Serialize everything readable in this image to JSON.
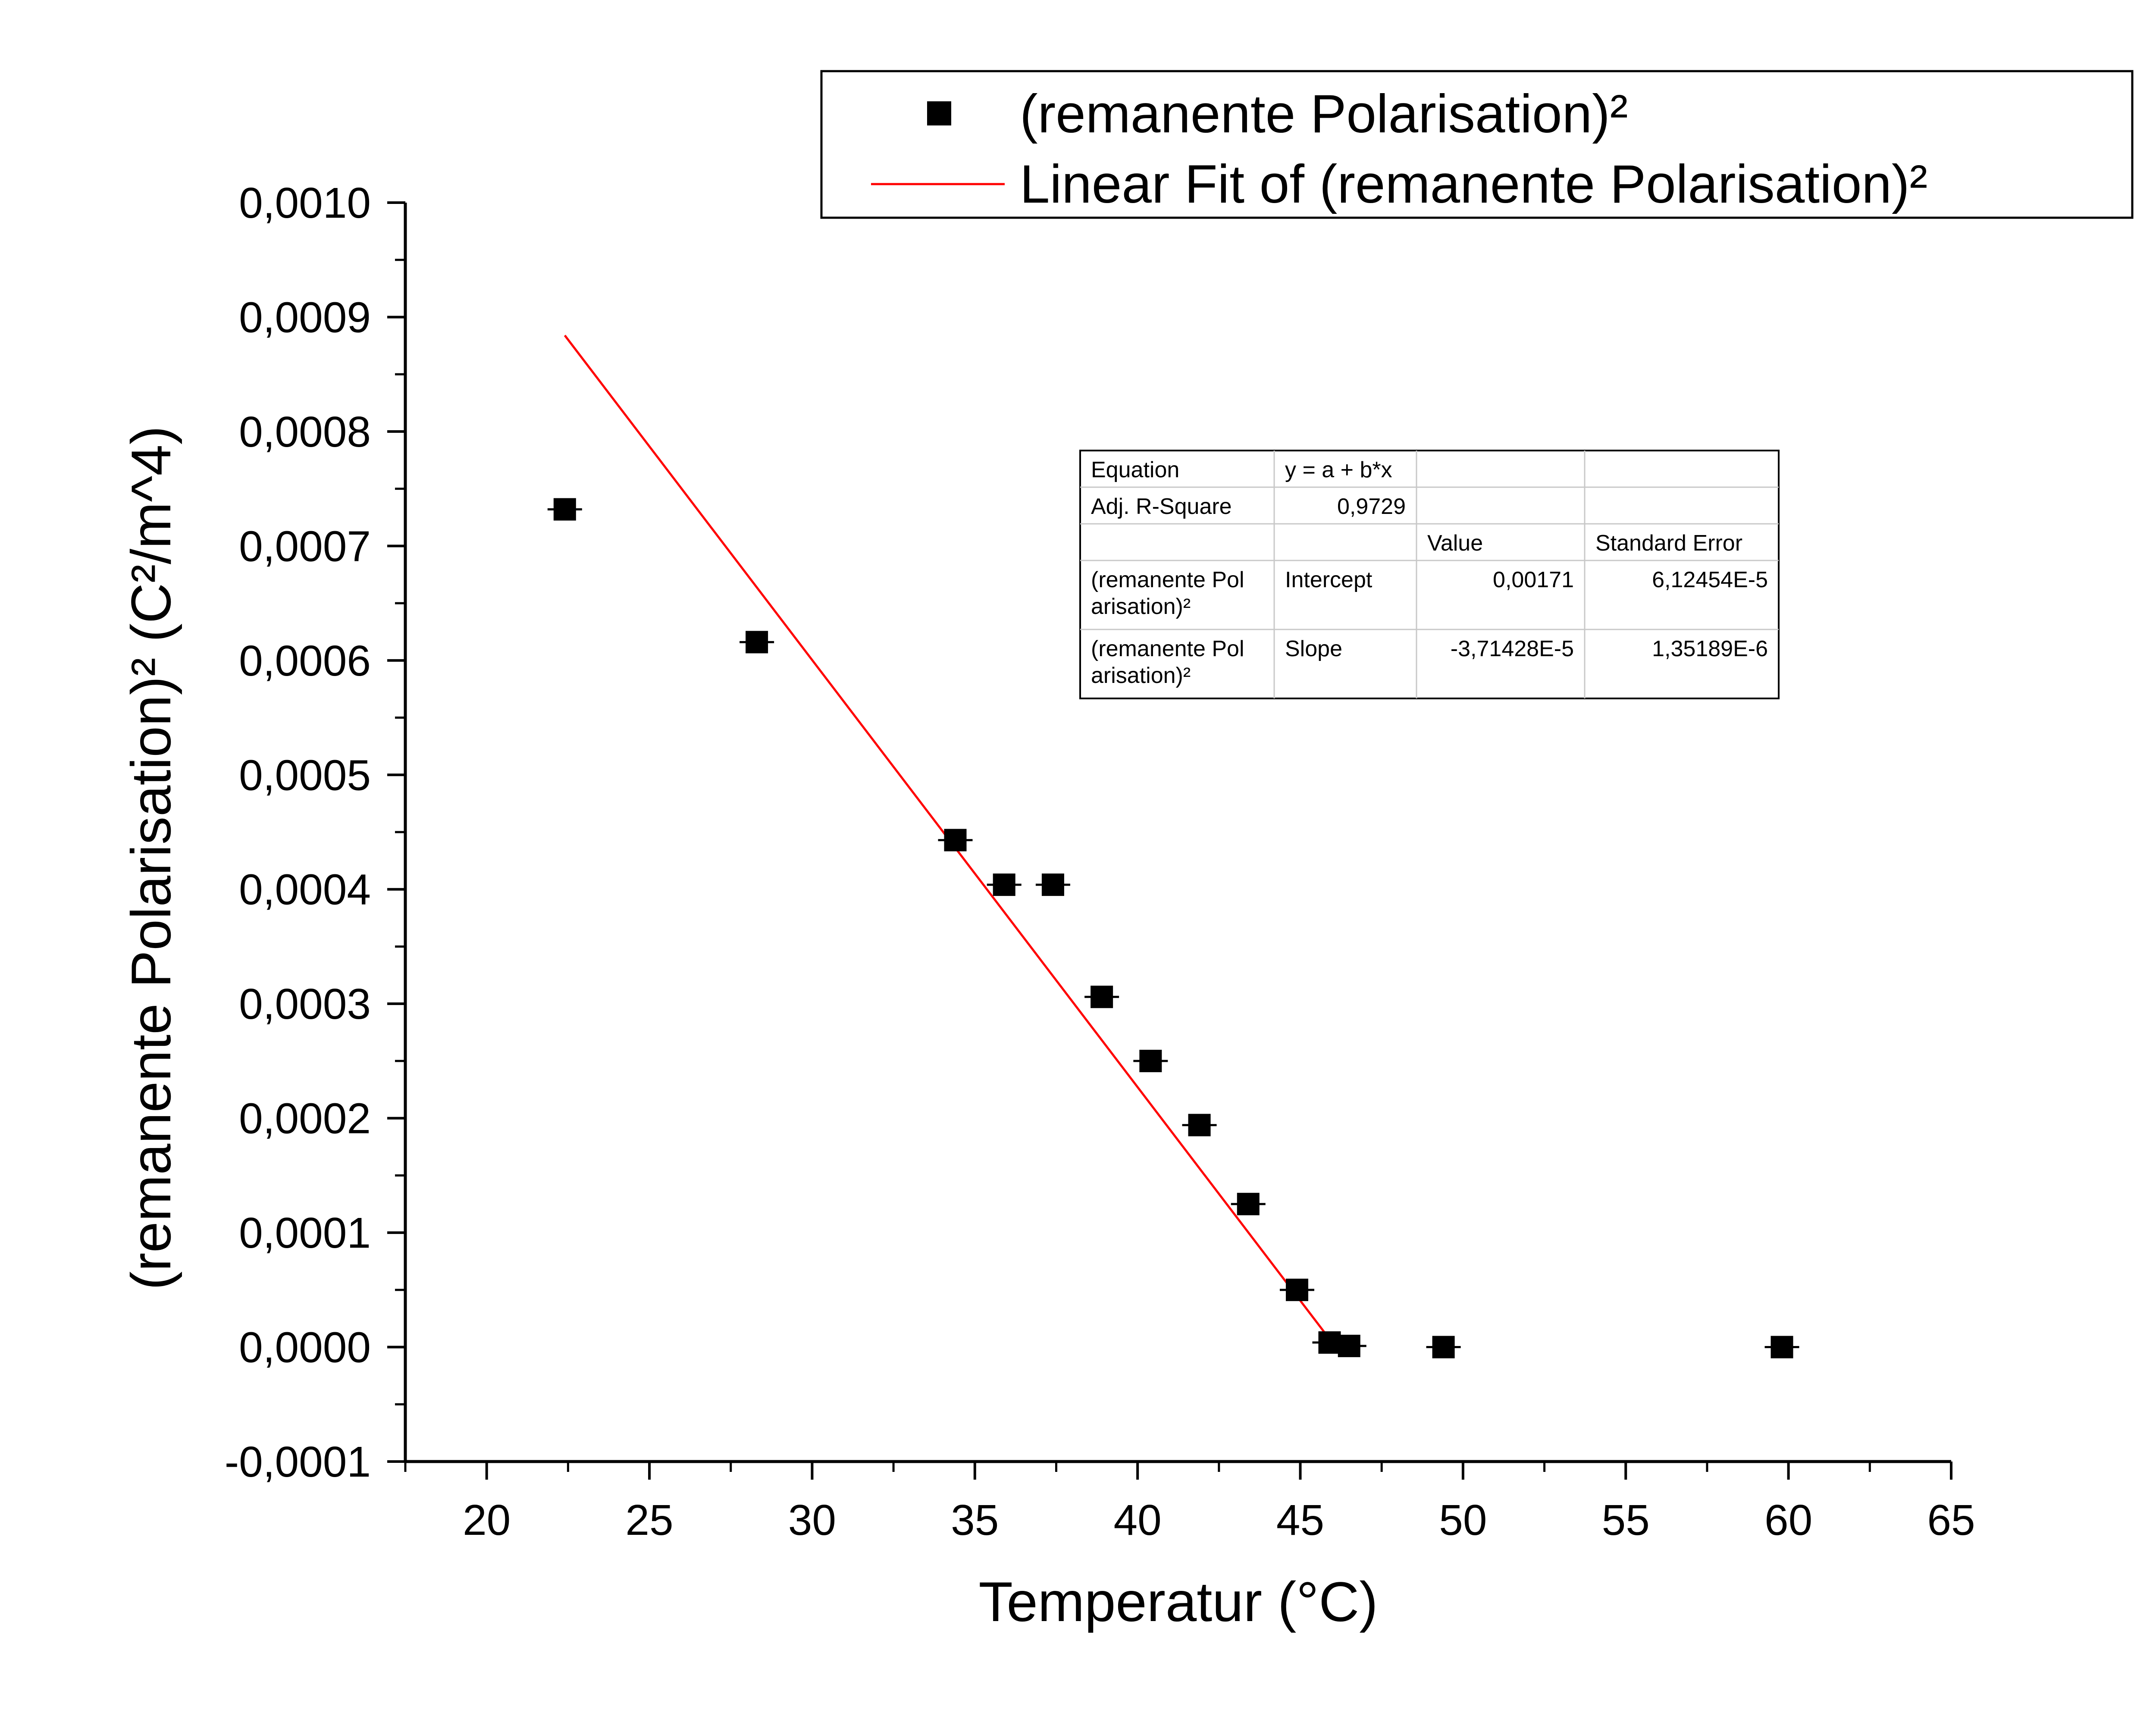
{
  "chart_data": {
    "type": "scatter",
    "xlabel": "Temperatur (°C)",
    "ylabel": "(remanente Polarisation)² (C²/m^4)",
    "xlim": [
      17.5,
      65
    ],
    "ylim": [
      -0.0001,
      0.001
    ],
    "xticks": [
      20,
      25,
      30,
      35,
      40,
      45,
      50,
      55,
      60,
      65
    ],
    "xtick_labels": [
      "20",
      "25",
      "30",
      "35",
      "40",
      "45",
      "50",
      "55",
      "60",
      "65"
    ],
    "yticks": [
      -0.0001,
      0,
      0.0001,
      0.0002,
      0.0003,
      0.0004,
      0.0005,
      0.0006,
      0.0007,
      0.0008,
      0.0009,
      0.001
    ],
    "ytick_labels": [
      "-0,0001",
      "0,0000",
      "0,0001",
      "0,0002",
      "0,0003",
      "0,0004",
      "0,0005",
      "0,0006",
      "0,0007",
      "0,0008",
      "0,0009",
      "0,0010"
    ],
    "legend_position": "top-right",
    "series": [
      {
        "name": "(remanente Polarisation)²",
        "kind": "scatter",
        "marker": "square",
        "color": "#000000",
        "x": [
          22.4,
          28.3,
          34.4,
          35.9,
          37.4,
          38.9,
          40.4,
          41.9,
          43.4,
          44.9,
          45.9,
          46.5,
          49.4,
          59.8
        ],
        "y": [
          0.000732,
          0.000616,
          0.000443,
          0.000404,
          0.000404,
          0.000306,
          0.00025,
          0.000194,
          0.000125,
          5e-05,
          4e-06,
          1e-06,
          0.0,
          0.0
        ]
      },
      {
        "name": "Linear Fit of (remanente Polarisation)²",
        "kind": "line",
        "color": "#ff0000",
        "x": [
          22.4,
          45.9
        ],
        "y": [
          0.000884,
          7e-06
        ]
      }
    ],
    "fit_table": {
      "rows": [
        [
          "Equation",
          "y = a + b*x",
          "",
          ""
        ],
        [
          "Adj. R-Square",
          "0,9729",
          "",
          ""
        ],
        [
          "",
          "",
          "Value",
          "Standard Error"
        ],
        [
          "(remanente Pol\narisation)²",
          "Intercept",
          "0,00171",
          "6,12454E-5"
        ],
        [
          "(remanente Pol\narisation)²",
          "Slope",
          "-3,71428E-5",
          "1,35189E-6"
        ]
      ]
    }
  }
}
